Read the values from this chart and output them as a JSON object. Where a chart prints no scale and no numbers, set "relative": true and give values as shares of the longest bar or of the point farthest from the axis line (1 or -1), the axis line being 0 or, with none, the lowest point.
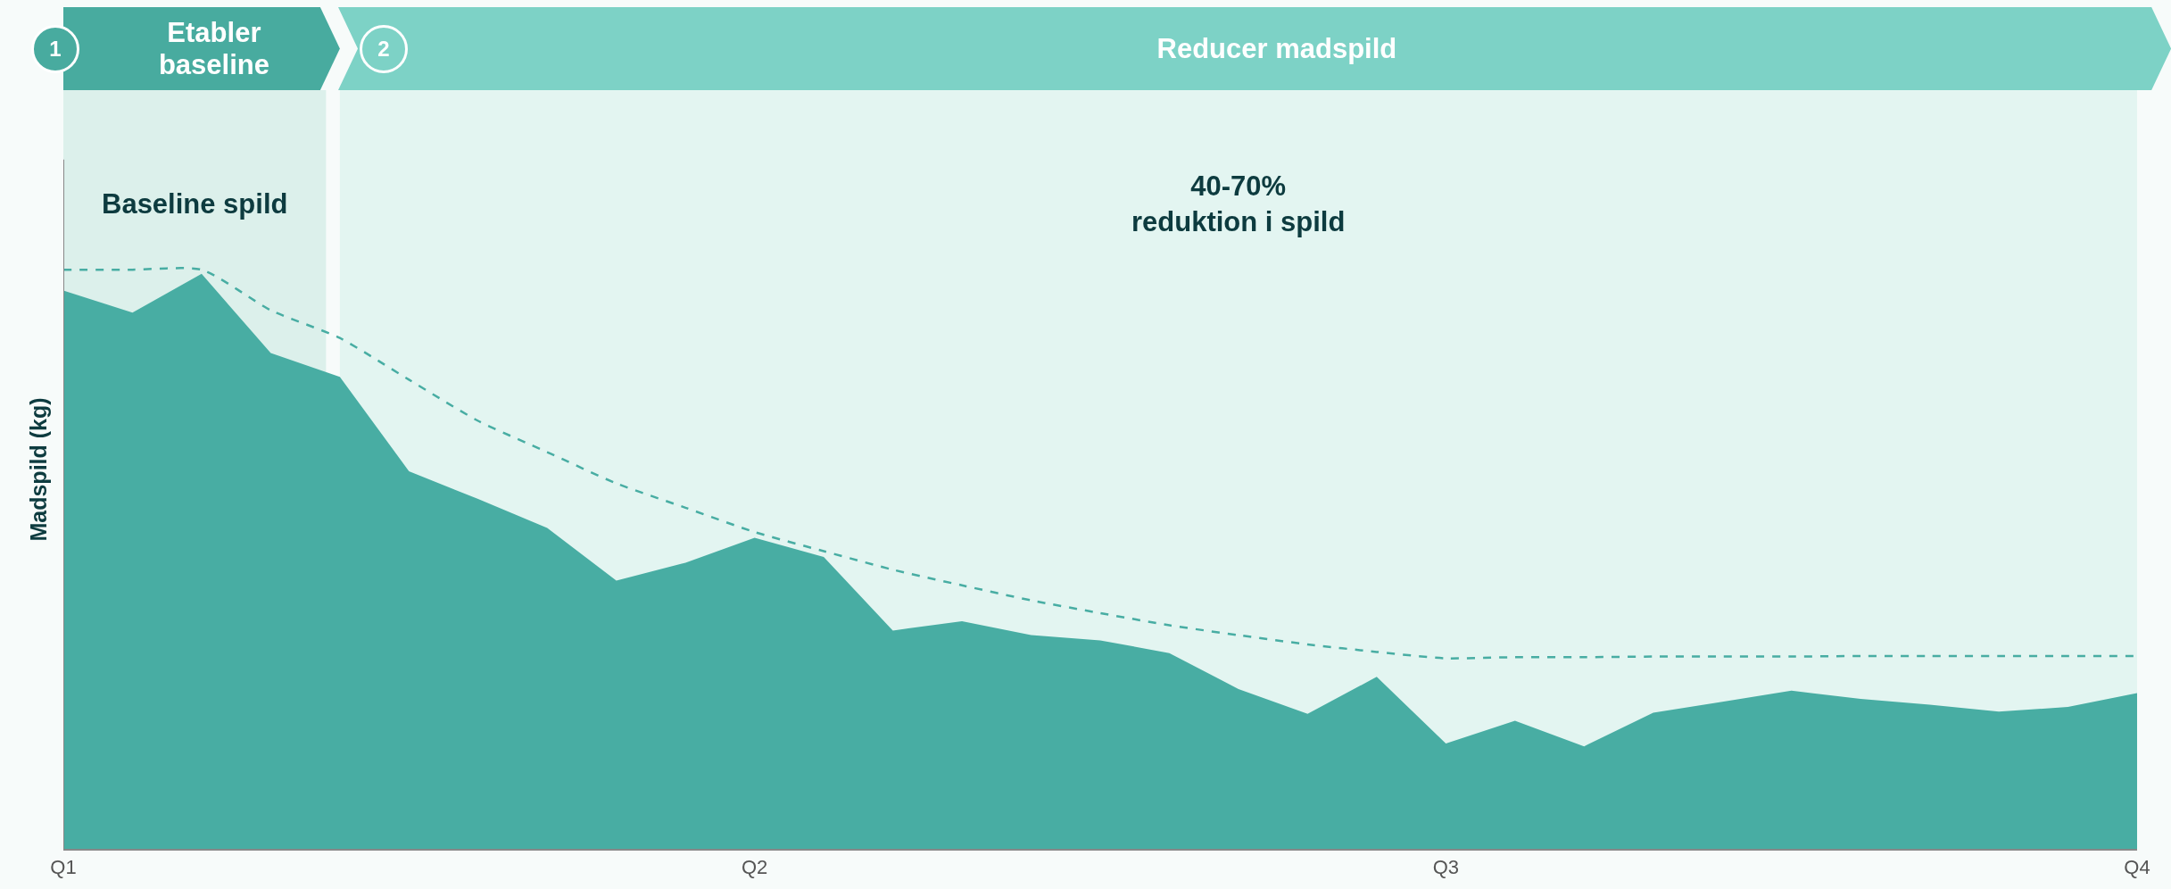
{
  "chart_data": {
    "type": "area",
    "ylabel": "Madspild (kg)",
    "relative": true,
    "categories": [
      "Q1",
      null,
      null,
      null,
      null,
      null,
      null,
      null,
      null,
      null,
      "Q2",
      null,
      null,
      null,
      null,
      null,
      null,
      null,
      null,
      null,
      "Q3",
      null,
      null,
      null,
      null,
      null,
      null,
      null,
      null,
      null,
      "Q4"
    ],
    "series": [
      {
        "color": "#48ada3",
        "values": [
          0.964,
          0.926,
          0.993,
          0.856,
          0.815,
          0.652,
          0.604,
          0.554,
          0.463,
          0.494,
          0.537,
          0.504,
          0.377,
          0.393,
          0.369,
          0.36,
          0.338,
          0.276,
          0.233,
          0.297,
          0.182,
          0.221,
          0.177,
          0.235,
          0.254,
          0.273,
          0.259,
          0.249,
          0.237,
          0.245,
          0.269
        ]
      },
      {
        "type": "line",
        "line_style": "dashed",
        "color": "#48ada3",
        "values": [
          1,
          1,
          1,
          0.93,
          0.882,
          0.81,
          0.739,
          0.685,
          0.631,
          0.589,
          0.547,
          0.514,
          0.482,
          0.455,
          0.429,
          0.407,
          0.386,
          0.369,
          0.353,
          0.34,
          0.329,
          0.331,
          0.331,
          0.332,
          0.332,
          0.332,
          0.333,
          0.333,
          0.333,
          0.333,
          0.333
        ]
      }
    ],
    "annotations": [
      "1",
      "Etabler\nbaseline",
      "2",
      "Reducer madspild",
      "Baseline spild",
      "40-70%\nreduktion i spild"
    ]
  }
}
